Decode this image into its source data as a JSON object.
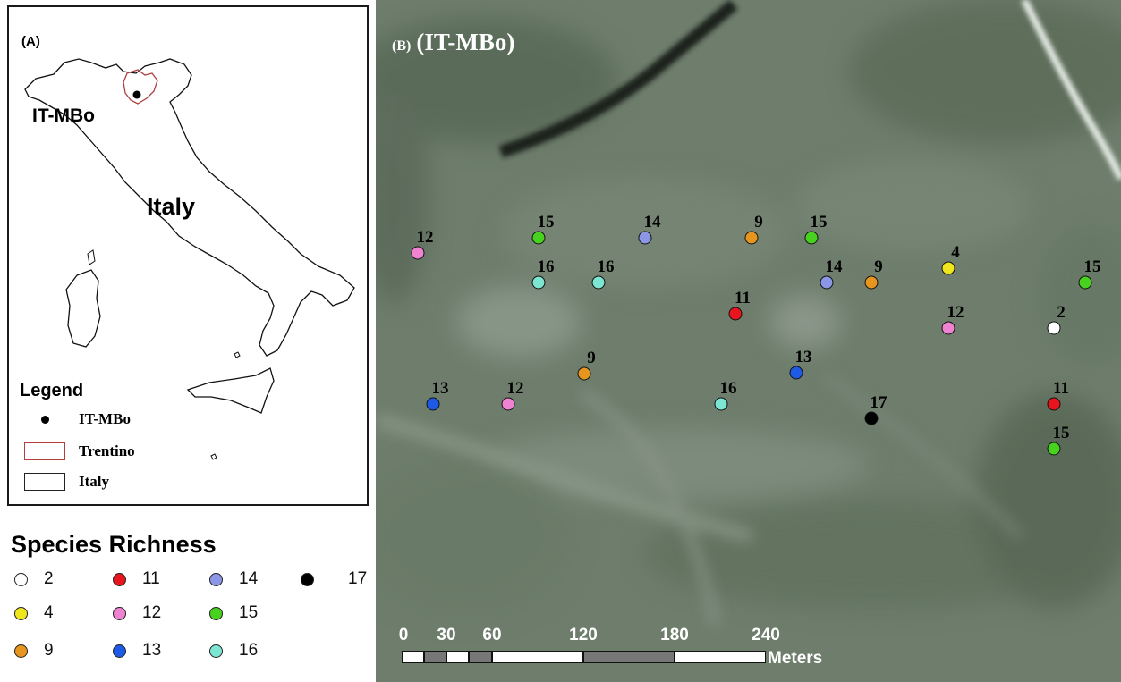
{
  "panel_a": {
    "label": "(A)",
    "site_label": "IT-MBo",
    "country_label": "Italy",
    "legend": {
      "title": "Legend",
      "items": [
        {
          "label": "IT-MBo",
          "icon": "black-dot-icon"
        },
        {
          "label": "Trentino",
          "icon": "red-outline-box-icon",
          "color": "#b04040"
        },
        {
          "label": "Italy",
          "icon": "black-outline-box-icon",
          "color": "#222222"
        }
      ]
    }
  },
  "species_richness": {
    "title": "Species Richness",
    "items": [
      {
        "value": "2",
        "color": "#ffffff"
      },
      {
        "value": "11",
        "color": "#e8141e"
      },
      {
        "value": "14",
        "color": "#8c96e6"
      },
      {
        "value": "17",
        "color": "#000000"
      },
      {
        "value": "4",
        "color": "#f0e61e"
      },
      {
        "value": "12",
        "color": "#f082d2"
      },
      {
        "value": "15",
        "color": "#46d21e"
      },
      {
        "value": "9",
        "color": "#e6961e"
      },
      {
        "value": "13",
        "color": "#1e5ae6"
      },
      {
        "value": "16",
        "color": "#7de6d2"
      }
    ]
  },
  "panel_b": {
    "label_letter": "(B)",
    "label_site": "(IT-MBo)",
    "points": [
      {
        "value": "12",
        "color": "#f082d2"
      },
      {
        "value": "15",
        "color": "#46d21e"
      },
      {
        "value": "14",
        "color": "#8c96e6"
      },
      {
        "value": "9",
        "color": "#e6961e"
      },
      {
        "value": "15",
        "color": "#46d21e"
      },
      {
        "value": "16",
        "color": "#7de6d2"
      },
      {
        "value": "16",
        "color": "#7de6d2"
      },
      {
        "value": "14",
        "color": "#8c96e6"
      },
      {
        "value": "9",
        "color": "#e6961e"
      },
      {
        "value": "4",
        "color": "#f0e61e"
      },
      {
        "value": "15",
        "color": "#46d21e"
      },
      {
        "value": "11",
        "color": "#e8141e"
      },
      {
        "value": "12",
        "color": "#f082d2"
      },
      {
        "value": "2",
        "color": "#ffffff"
      },
      {
        "value": "9",
        "color": "#e6961e"
      },
      {
        "value": "13",
        "color": "#1e5ae6"
      },
      {
        "value": "13",
        "color": "#1e5ae6"
      },
      {
        "value": "12",
        "color": "#f082d2"
      },
      {
        "value": "16",
        "color": "#7de6d2"
      },
      {
        "value": "17",
        "color": "#000000"
      },
      {
        "value": "11",
        "color": "#e8141e"
      },
      {
        "value": "15",
        "color": "#46d21e"
      }
    ],
    "scale_bar": {
      "ticks": [
        "0",
        "30",
        "60",
        "120",
        "180",
        "240"
      ],
      "unit": "Meters"
    }
  }
}
